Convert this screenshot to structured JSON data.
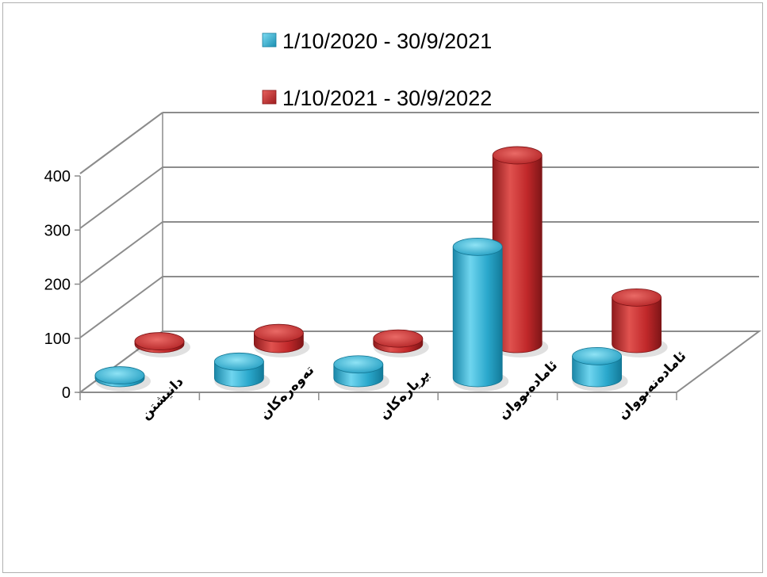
{
  "chart_data": {
    "type": "bar",
    "style": "3d-cylinder",
    "categories": [
      "دانیشتن",
      "تەوەرەکان",
      "بڕیارەکان",
      "ئامادەبووان",
      "ئامادەنەبووان"
    ],
    "series": [
      {
        "name": "1/10/2020 - 30/9/2021",
        "color": "#2aa8cc",
        "values": [
          5,
          30,
          25,
          240,
          40
        ]
      },
      {
        "name": "1/10/2021 - 30/9/2022",
        "color": "#c0282a",
        "values": [
          5,
          20,
          10,
          345,
          85
        ]
      }
    ],
    "y_ticks": [
      "0",
      "100",
      "200",
      "300",
      "400"
    ],
    "ylim": [
      0,
      400
    ],
    "grid": true,
    "legend_position": "top"
  }
}
